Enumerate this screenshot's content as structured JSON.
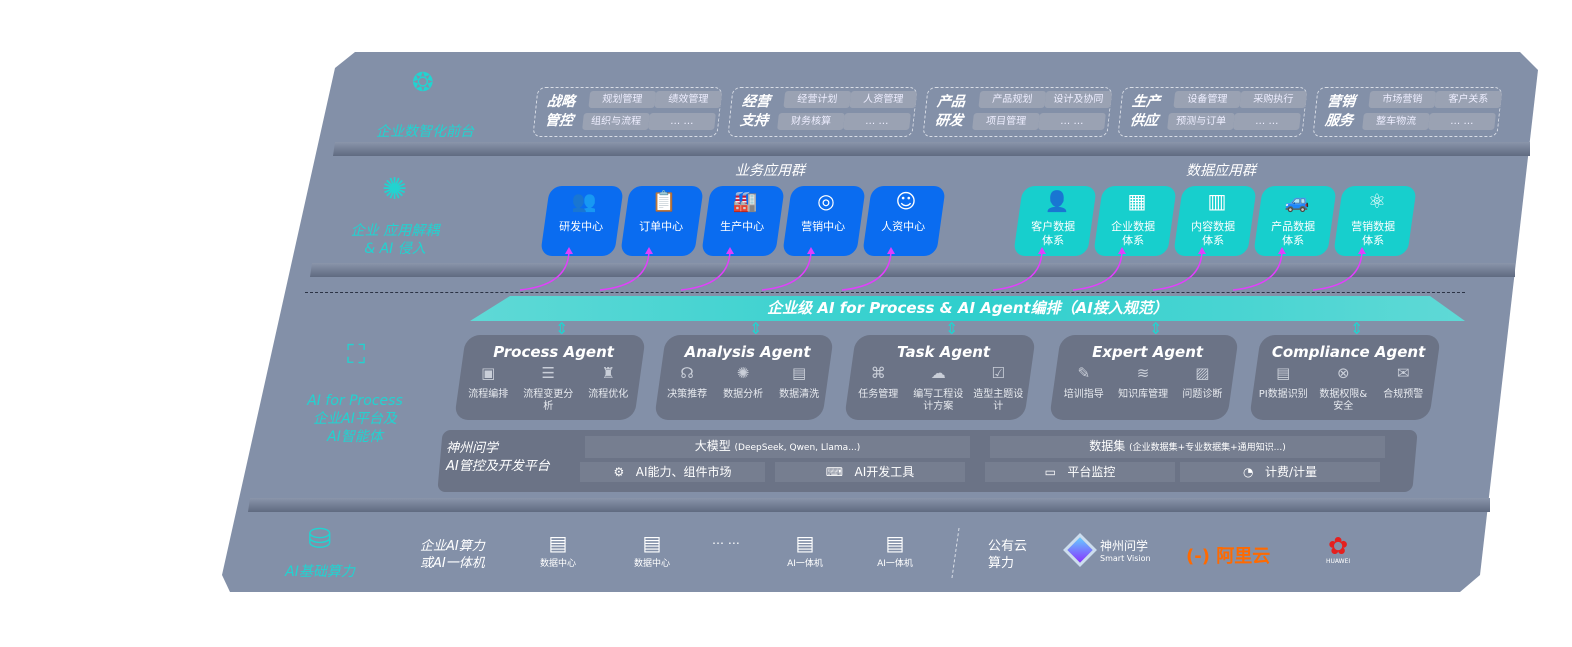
{
  "layers": {
    "front": "企业数智化前台",
    "apps": "企业 应用解耦\n& AI 侵入",
    "ai": "AI for Process\n企业AI平台及\nAI智能体",
    "infra": "AI基础算力"
  },
  "front_groups": [
    {
      "title": "战略\n管控",
      "chips": [
        "规划管理",
        "绩效管理",
        "组织与流程",
        "… …"
      ]
    },
    {
      "title": "经营\n支持",
      "chips": [
        "经营计划",
        "人资管理",
        "财务核算",
        "… …"
      ]
    },
    {
      "title": "产品\n研发",
      "chips": [
        "产品规划",
        "设计及协同",
        "项目管理",
        "… …"
      ]
    },
    {
      "title": "生产\n供应",
      "chips": [
        "设备管理",
        "采购执行",
        "预测与订单",
        "… …"
      ]
    },
    {
      "title": "营销\n服务",
      "chips": [
        "市场营销",
        "客户关系",
        "整车物流",
        "… …"
      ]
    }
  ],
  "business_apps": {
    "title": "业务应用群",
    "items": [
      {
        "label": "研发中心",
        "icon": "team-icon"
      },
      {
        "label": "订单中心",
        "icon": "clipboard-icon"
      },
      {
        "label": "生产中心",
        "icon": "factory-icon"
      },
      {
        "label": "营销中心",
        "icon": "target-icon"
      },
      {
        "label": "人资中心",
        "icon": "person-icon"
      }
    ]
  },
  "data_apps": {
    "title": "数据应用群",
    "items": [
      {
        "label": "客户数据\n体系",
        "icon": "user-icon"
      },
      {
        "label": "企业数据\n体系",
        "icon": "building-icon"
      },
      {
        "label": "内容数据\n体系",
        "icon": "books-icon"
      },
      {
        "label": "产品数据\n体系",
        "icon": "car-icon"
      },
      {
        "label": "营销数据\n体系",
        "icon": "atom-icon"
      }
    ]
  },
  "banner": "企业级 AI for Process & AI Agent编排（AI接入规范）",
  "agents": [
    {
      "name": "Process Agent",
      "items": [
        "流程编排",
        "流程变更分析",
        "流程优化"
      ]
    },
    {
      "name": "Analysis Agent",
      "items": [
        "决策推荐",
        "数据分析",
        "数据清洗"
      ]
    },
    {
      "name": "Task Agent",
      "items": [
        "任务管理",
        "编写工程设计方案",
        "造型主题设计"
      ]
    },
    {
      "name": "Expert Agent",
      "items": [
        "培训指导",
        "知识库管理",
        "问题诊断"
      ]
    },
    {
      "name": "Compliance Agent",
      "items": [
        "PI数据识别",
        "数据权限&\n安全",
        "合规预警"
      ]
    }
  ],
  "platform": {
    "title": "神州问学\nAI管控及开发平台",
    "model": "大模型",
    "model_note": "(DeepSeek, Qwen, Llama...)",
    "dataset": "数据集",
    "dataset_note": "(企业数据集+专业数据集+通用知识...)",
    "market": "AI能力、组件市场",
    "devtools": "AI开发工具",
    "monitor": "平台监控",
    "billing": "计费/计量"
  },
  "infra": {
    "private_label": "企业AI算力\n或AI一体机",
    "servers": [
      "数据中心",
      "数据中心",
      "AI一体机",
      "AI一体机"
    ],
    "ellipsis": "… …",
    "public_label": "公有云\n算力",
    "logos": {
      "smart_vision": "神州问学",
      "smart_vision_en": "Smart Vision",
      "aliyun": "阿里云",
      "huawei": "HUAWEI"
    }
  },
  "colors": {
    "panel": "#8390a8",
    "teal": "#22d3d0",
    "blue": "#0a6cf0",
    "agent": "#6b7386",
    "magenta": "#e040fb",
    "aliyun": "#ff6a00",
    "huawei": "#e5201f"
  }
}
